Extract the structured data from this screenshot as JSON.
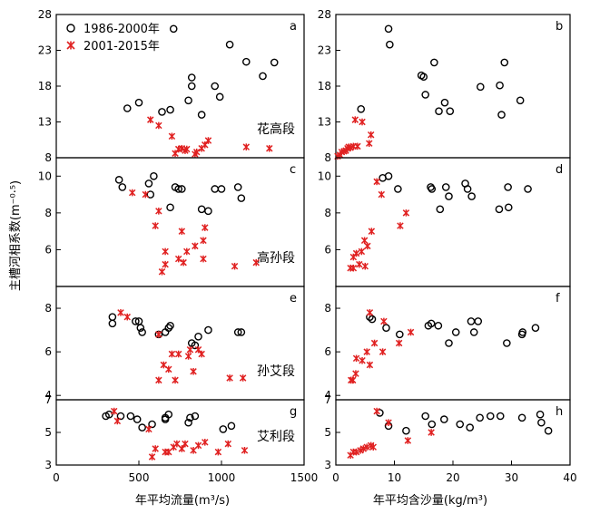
{
  "figure": {
    "ylabel": "主槽河相系数(m⁻⁰·⁵)",
    "xlabel_left": "年平均流量(m³/s)",
    "xlabel_right": "年平均含沙量(kg/m³)",
    "legend": [
      {
        "label": "1986-2000年",
        "marker": "circle"
      },
      {
        "label": "2001-2015年",
        "marker": "star",
        "color": "#e02020"
      }
    ]
  },
  "chart_data": [
    {
      "type": "scatter",
      "panel": "a",
      "segment": "花高段",
      "xlim": [
        0,
        1500
      ],
      "ylim": [
        8,
        28
      ],
      "yticks": [
        "8",
        "13",
        "18",
        "23",
        "28"
      ],
      "series": [
        {
          "name": "1986-2000年",
          "points": [
            [
              430,
              14.9
            ],
            [
              500,
              15.7
            ],
            [
              640,
              14.4
            ],
            [
              690,
              14.7
            ],
            [
              710,
              26
            ],
            [
              800,
              16
            ],
            [
              820,
              18
            ],
            [
              820,
              19.2
            ],
            [
              880,
              14
            ],
            [
              960,
              18
            ],
            [
              990,
              16.5
            ],
            [
              1050,
              23.8
            ],
            [
              1150,
              21.4
            ],
            [
              1250,
              19.4
            ],
            [
              1320,
              21.3
            ]
          ]
        },
        {
          "name": "2001-2015年",
          "points": [
            [
              570,
              13.3
            ],
            [
              620,
              12.5
            ],
            [
              700,
              11
            ],
            [
              720,
              8.6
            ],
            [
              740,
              9.2
            ],
            [
              760,
              9.3
            ],
            [
              780,
              9
            ],
            [
              790,
              9.2
            ],
            [
              840,
              8.5
            ],
            [
              850,
              8.8
            ],
            [
              880,
              9.3
            ],
            [
              900,
              9.8
            ],
            [
              920,
              10.4
            ],
            [
              1150,
              9.5
            ],
            [
              1290,
              9.3
            ]
          ]
        }
      ]
    },
    {
      "type": "scatter",
      "panel": "b",
      "segment": "",
      "xlim": [
        0,
        40
      ],
      "ylim": [
        8,
        28
      ],
      "yticks": [
        "8",
        "13",
        "18",
        "23",
        "28"
      ],
      "series": [
        {
          "name": "1986-2000年",
          "points": [
            [
              4.3,
              14.8
            ],
            [
              9,
              26
            ],
            [
              9.2,
              23.8
            ],
            [
              14.6,
              19.5
            ],
            [
              15,
              19.3
            ],
            [
              15.3,
              16.8
            ],
            [
              16.8,
              21.3
            ],
            [
              17.6,
              14.5
            ],
            [
              18.6,
              15.7
            ],
            [
              19.5,
              14.5
            ],
            [
              24.7,
              17.9
            ],
            [
              28,
              18.1
            ],
            [
              28.3,
              14
            ],
            [
              28.8,
              21.3
            ],
            [
              31.5,
              16
            ]
          ]
        },
        {
          "name": "2001-2015年",
          "points": [
            [
              0.3,
              8.2
            ],
            [
              0.7,
              8.4
            ],
            [
              1,
              8.8
            ],
            [
              1.4,
              8.9
            ],
            [
              1.7,
              9
            ],
            [
              2,
              9.3
            ],
            [
              2.2,
              9.5
            ],
            [
              2.5,
              9.4
            ],
            [
              3,
              9.6
            ],
            [
              3.3,
              13.3
            ],
            [
              3.7,
              9.6
            ],
            [
              4.5,
              13
            ],
            [
              5.7,
              10
            ],
            [
              6,
              11.2
            ]
          ]
        }
      ]
    },
    {
      "type": "scatter",
      "panel": "c",
      "segment": "高孙段",
      "xlim": [
        0,
        1500
      ],
      "ylim": [
        4,
        11
      ],
      "yticks": [
        "6",
        "8",
        "10"
      ],
      "series": [
        {
          "name": "1986-2000年",
          "points": [
            [
              380,
              9.8
            ],
            [
              400,
              9.4
            ],
            [
              560,
              9.6
            ],
            [
              570,
              9
            ],
            [
              590,
              10
            ],
            [
              690,
              8.3
            ],
            [
              720,
              9.4
            ],
            [
              740,
              9.3
            ],
            [
              760,
              9.3
            ],
            [
              880,
              8.2
            ],
            [
              920,
              8.1
            ],
            [
              960,
              9.3
            ],
            [
              1000,
              9.3
            ],
            [
              1100,
              9.4
            ],
            [
              1120,
              8.8
            ]
          ]
        },
        {
          "name": "2001-2015年",
          "points": [
            [
              460,
              9.1
            ],
            [
              540,
              9
            ],
            [
              600,
              7.3
            ],
            [
              620,
              8.1
            ],
            [
              640,
              4.8
            ],
            [
              660,
              5.2
            ],
            [
              660,
              5.9
            ],
            [
              740,
              5.5
            ],
            [
              760,
              7
            ],
            [
              770,
              5.3
            ],
            [
              790,
              5.9
            ],
            [
              840,
              6.2
            ],
            [
              890,
              5.5
            ],
            [
              890,
              6.5
            ],
            [
              900,
              7.2
            ],
            [
              1080,
              5.1
            ],
            [
              1210,
              5.3
            ]
          ]
        }
      ]
    },
    {
      "type": "scatter",
      "panel": "d",
      "segment": "",
      "xlim": [
        0,
        40
      ],
      "ylim": [
        4,
        11
      ],
      "yticks": [
        "6",
        "8",
        "10"
      ],
      "series": [
        {
          "name": "1986-2000年",
          "points": [
            [
              8,
              9.9
            ],
            [
              9,
              10
            ],
            [
              10.6,
              9.3
            ],
            [
              16.2,
              9.4
            ],
            [
              16.4,
              9.3
            ],
            [
              17.8,
              8.2
            ],
            [
              18.8,
              9.4
            ],
            [
              19.3,
              8.9
            ],
            [
              22.1,
              9.6
            ],
            [
              22.5,
              9.3
            ],
            [
              23.2,
              8.9
            ],
            [
              27.9,
              8.2
            ],
            [
              29.4,
              9.4
            ],
            [
              29.5,
              8.3
            ],
            [
              32.8,
              9.3
            ]
          ]
        },
        {
          "name": "2001-2015年",
          "points": [
            [
              2.5,
              5
            ],
            [
              3,
              5.6
            ],
            [
              3,
              5
            ],
            [
              3.5,
              5.8
            ],
            [
              4,
              5.2
            ],
            [
              4.4,
              5.9
            ],
            [
              4.9,
              6.5
            ],
            [
              5,
              5.1
            ],
            [
              5.4,
              6.2
            ],
            [
              6.1,
              7
            ],
            [
              7,
              9.7
            ],
            [
              7.8,
              9
            ],
            [
              11,
              7.3
            ],
            [
              12,
              8
            ]
          ]
        }
      ]
    },
    {
      "type": "scatter",
      "panel": "e",
      "segment": "孙艾段",
      "xlim": [
        0,
        1500
      ],
      "ylim": [
        3.8,
        9
      ],
      "yticks": [
        "4",
        "6",
        "8"
      ],
      "series": [
        {
          "name": "1986-2000年",
          "points": [
            [
              340,
              7.6
            ],
            [
              340,
              7.3
            ],
            [
              480,
              7.4
            ],
            [
              500,
              7.4
            ],
            [
              510,
              7.1
            ],
            [
              520,
              6.9
            ],
            [
              620,
              6.8
            ],
            [
              660,
              6.9
            ],
            [
              680,
              7.1
            ],
            [
              690,
              7.2
            ],
            [
              820,
              6.4
            ],
            [
              840,
              6.3
            ],
            [
              860,
              6.7
            ],
            [
              920,
              7
            ],
            [
              1100,
              6.9
            ],
            [
              1120,
              6.9
            ]
          ]
        },
        {
          "name": "2001-2015年",
          "points": [
            [
              390,
              7.8
            ],
            [
              430,
              7.6
            ],
            [
              620,
              6.8
            ],
            [
              620,
              4.7
            ],
            [
              650,
              5.4
            ],
            [
              680,
              5.2
            ],
            [
              700,
              5.9
            ],
            [
              720,
              4.7
            ],
            [
              740,
              5.9
            ],
            [
              800,
              5.8
            ],
            [
              810,
              6.1
            ],
            [
              830,
              5.1
            ],
            [
              860,
              6.1
            ],
            [
              880,
              5.9
            ],
            [
              1050,
              4.8
            ],
            [
              1130,
              4.8
            ]
          ]
        }
      ]
    },
    {
      "type": "scatter",
      "panel": "f",
      "segment": "",
      "xlim": [
        0,
        40
      ],
      "ylim": [
        3.8,
        9
      ],
      "yticks": [
        "4",
        "6",
        "8"
      ],
      "series": [
        {
          "name": "1986-2000年",
          "points": [
            [
              5.8,
              7.6
            ],
            [
              6.2,
              7.5
            ],
            [
              8.6,
              7.1
            ],
            [
              10.9,
              6.8
            ],
            [
              15.8,
              7.2
            ],
            [
              16.3,
              7.3
            ],
            [
              17.5,
              7.2
            ],
            [
              19.3,
              6.4
            ],
            [
              20.5,
              6.9
            ],
            [
              23.1,
              7.4
            ],
            [
              23.6,
              6.9
            ],
            [
              24.3,
              7.4
            ],
            [
              29.2,
              6.4
            ],
            [
              31.8,
              6.8
            ],
            [
              31.9,
              6.9
            ],
            [
              34.1,
              7.1
            ]
          ]
        },
        {
          "name": "2001-2015年",
          "points": [
            [
              2.6,
              4.7
            ],
            [
              2.9,
              4.7
            ],
            [
              3.4,
              5
            ],
            [
              3.5,
              5.7
            ],
            [
              4.5,
              5.6
            ],
            [
              5.3,
              6
            ],
            [
              5.8,
              5.4
            ],
            [
              5.8,
              7.8
            ],
            [
              6.6,
              6.4
            ],
            [
              8,
              6
            ],
            [
              8.2,
              7.4
            ],
            [
              10.8,
              6.4
            ],
            [
              12.8,
              6.9
            ]
          ]
        }
      ]
    },
    {
      "type": "scatter",
      "panel": "g",
      "segment": "艾利段",
      "xlim": [
        0,
        1500
      ],
      "ylim": [
        3,
        7
      ],
      "yticks": [
        "3",
        "5",
        "7"
      ],
      "series": [
        {
          "name": "1986-2000年",
          "points": [
            [
              300,
              6
            ],
            [
              320,
              6.1
            ],
            [
              390,
              6
            ],
            [
              450,
              6
            ],
            [
              490,
              5.8
            ],
            [
              520,
              5.3
            ],
            [
              580,
              5.5
            ],
            [
              660,
              5.8
            ],
            [
              660,
              5.9
            ],
            [
              680,
              6.1
            ],
            [
              800,
              5.6
            ],
            [
              810,
              5.9
            ],
            [
              840,
              6
            ],
            [
              1010,
              5.2
            ],
            [
              1060,
              5.4
            ]
          ]
        },
        {
          "name": "2001-2015年",
          "points": [
            [
              350,
              6.3
            ],
            [
              370,
              5.7
            ],
            [
              560,
              5.2
            ],
            [
              580,
              3.5
            ],
            [
              600,
              4
            ],
            [
              660,
              3.8
            ],
            [
              680,
              3.8
            ],
            [
              710,
              4.1
            ],
            [
              730,
              4.3
            ],
            [
              760,
              4
            ],
            [
              780,
              4.3
            ],
            [
              830,
              3.9
            ],
            [
              860,
              4.2
            ],
            [
              900,
              4.4
            ],
            [
              980,
              3.8
            ],
            [
              1040,
              4.3
            ],
            [
              1140,
              3.9
            ]
          ]
        }
      ]
    },
    {
      "type": "scatter",
      "panel": "h",
      "segment": "",
      "xlim": [
        0,
        40
      ],
      "ylim": [
        3,
        7
      ],
      "yticks": [
        "3",
        "5",
        "7"
      ],
      "series": [
        {
          "name": "1986-2000年",
          "points": [
            [
              7.5,
              6.2
            ],
            [
              9,
              5.4
            ],
            [
              12,
              5.1
            ],
            [
              15.3,
              6
            ],
            [
              16.4,
              5.5
            ],
            [
              18.5,
              5.8
            ],
            [
              21.2,
              5.5
            ],
            [
              22.9,
              5.3
            ],
            [
              24.6,
              5.9
            ],
            [
              26.4,
              6
            ],
            [
              28.1,
              6
            ],
            [
              31.8,
              5.9
            ],
            [
              34.9,
              6.1
            ],
            [
              35.1,
              5.6
            ],
            [
              36.3,
              5.1
            ]
          ]
        },
        {
          "name": "2001-2015年",
          "points": [
            [
              2.5,
              3.6
            ],
            [
              3,
              3.8
            ],
            [
              3.5,
              3.8
            ],
            [
              4.2,
              3.9
            ],
            [
              4.7,
              4
            ],
            [
              5.3,
              4.1
            ],
            [
              6,
              4.2
            ],
            [
              6.4,
              4.1
            ],
            [
              7,
              6.3
            ],
            [
              9,
              5.6
            ],
            [
              12.3,
              4.5
            ],
            [
              16.3,
              5
            ]
          ]
        }
      ]
    }
  ],
  "bottom_ticks_left": [
    "0",
    "500",
    "1000",
    "1500"
  ],
  "bottom_ticks_right": [
    "0",
    "10",
    "20",
    "30",
    "40"
  ],
  "colors": {
    "red": "#e02020",
    "black": "#000000"
  }
}
